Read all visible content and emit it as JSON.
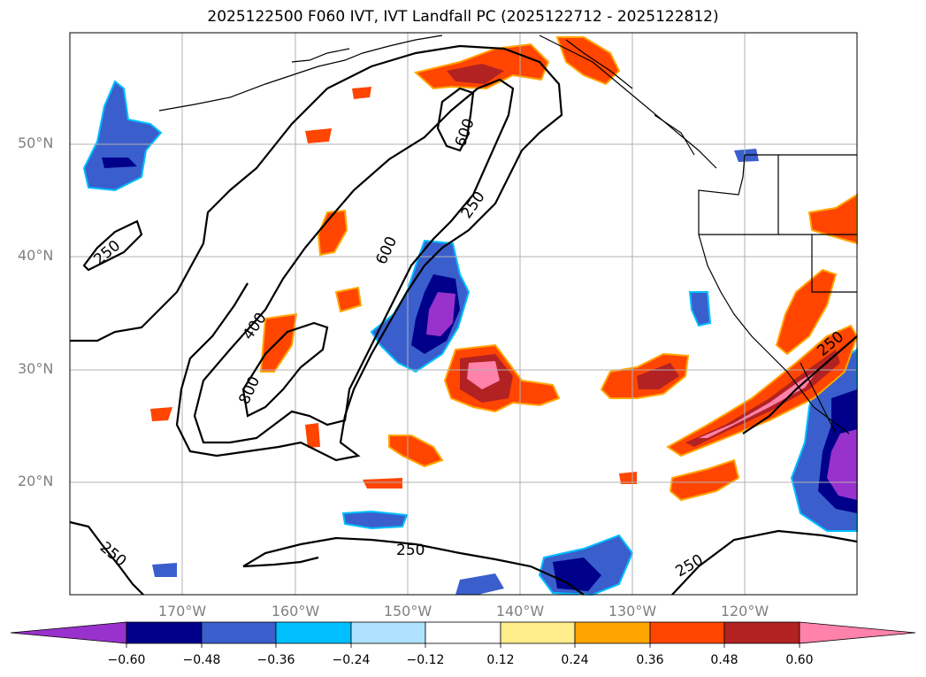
{
  "title": "2025122500 F060 IVT, IVT Landfall PC (2025122712 - 2025122812)",
  "lat_labels": [
    "50°N",
    "40°N",
    "30°N",
    "20°N"
  ],
  "lon_labels": [
    "170°W",
    "160°W",
    "150°W",
    "140°W",
    "130°W",
    "120°W"
  ],
  "contour_labels": [
    "250",
    "400",
    "600",
    "800",
    "600",
    "250",
    "250",
    "250",
    "250",
    "250",
    "250"
  ],
  "colorbar": {
    "ticks": [
      "−0.60",
      "−0.48",
      "−0.36",
      "−0.24",
      "−0.12",
      "0.12",
      "0.24",
      "0.36",
      "0.48",
      "0.60"
    ],
    "colors": [
      "#9932cc",
      "#00008b",
      "#3a5fcd",
      "#00bfff",
      "#b0e2ff",
      "#ffffff",
      "#ffec8b",
      "#ffa500",
      "#ff4500",
      "#b22222",
      "#ff82ab"
    ]
  },
  "colors": {
    "grid": "#b0b0b0",
    "coast": "#000000",
    "label_gray": "#808080"
  }
}
